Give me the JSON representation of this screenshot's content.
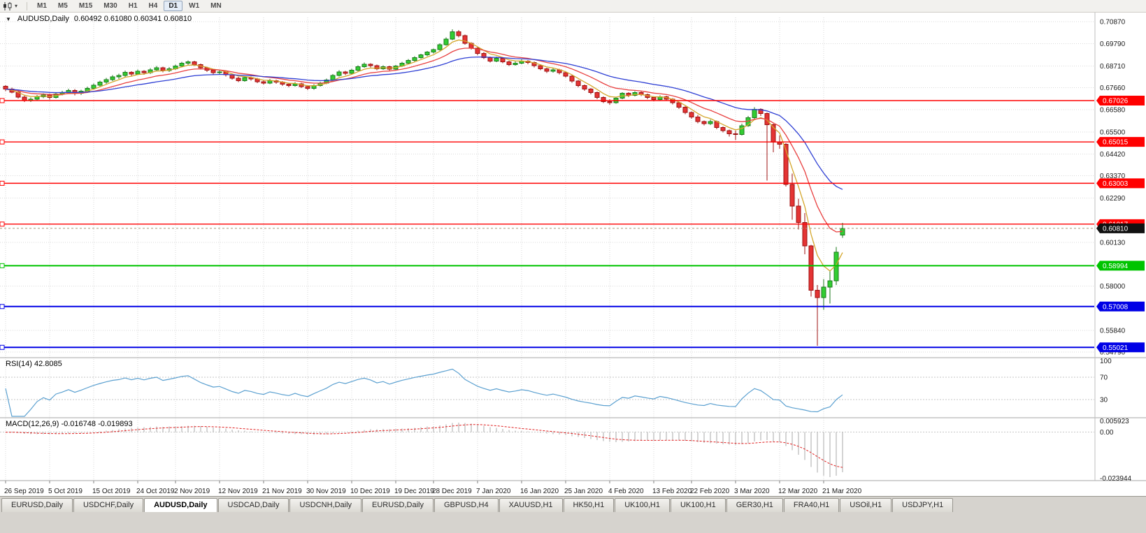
{
  "toolbar": {
    "chart_icon": "candlestick-chart-icon",
    "dropdown_icon": "▾",
    "timeframes": [
      "M1",
      "M5",
      "M15",
      "M30",
      "H1",
      "H4",
      "D1",
      "W1",
      "MN"
    ],
    "active_timeframe": "D1"
  },
  "chart_header": {
    "collapse_icon": "▼",
    "title": "AUDUSD,Daily",
    "ohlc": "0.60492 0.61080 0.60341 0.60810"
  },
  "rsi_header": "RSI(14) 42.8085",
  "macd_header": "MACD(12,26,9) -0.016748 -0.019893",
  "tabbar": {
    "tabs": [
      "EURUSD,Daily",
      "USDCHF,Daily",
      "AUDUSD,Daily",
      "USDCAD,Daily",
      "USDCNH,Daily",
      "EURUSD,Daily",
      "GBPUSD,H4",
      "XAUUSD,H1",
      "HK50,H1",
      "UK100,H1",
      "UK100,H1",
      "GER30,H1",
      "FRA40,H1",
      "USOil,H1",
      "USDJPY,H1"
    ],
    "active_index": 2
  },
  "chart_data": {
    "type": "candlestick",
    "symbol": "AUDUSD",
    "timeframe": "Daily",
    "current_bar": {
      "open": "0.60492",
      "high": "0.61080",
      "low": "0.60341",
      "close": "0.60810"
    },
    "price_axis": {
      "top_price": 0.7107,
      "bottom_price": 0.5452,
      "ticks": [
        "0.70870",
        "0.69790",
        "0.68710",
        "0.67660",
        "0.66580",
        "0.65500",
        "0.64420",
        "0.63370",
        "0.62290",
        "0.60130",
        "0.58000",
        "0.55840",
        "0.54790"
      ]
    },
    "x_labels": [
      "26 Sep 2019",
      "5 Oct 2019",
      "15 Oct 2019",
      "24 Oct 2019",
      "2 Nov 2019",
      "12 Nov 2019",
      "21 Nov 2019",
      "30 Nov 2019",
      "10 Dec 2019",
      "19 Dec 2019",
      "28 Dec 2019",
      "7 Jan 2020",
      "16 Jan 2020",
      "25 Jan 2020",
      "4 Feb 2020",
      "13 Feb 2020",
      "22 Feb 2020",
      "3 Mar 2020",
      "12 Mar 2020",
      "21 Mar 2020"
    ],
    "x_label_indices": [
      0,
      7,
      14,
      21,
      27,
      34,
      41,
      48,
      55,
      62,
      68,
      75,
      82,
      89,
      96,
      103,
      109,
      116,
      123,
      130
    ],
    "hlines": [
      {
        "price": 0.67026,
        "label": "0.67026",
        "color": "#ff0000",
        "width": 1.4
      },
      {
        "price": 0.65015,
        "label": "0.65015",
        "color": "#ff0000",
        "width": 1.4
      },
      {
        "price": 0.63003,
        "label": "0.63003",
        "color": "#ff0000",
        "width": 1.4
      },
      {
        "price": 0.61017,
        "label": "0.61017",
        "color": "#ff0000",
        "width": 1.4
      },
      {
        "price": 0.58994,
        "label": "0.58994",
        "color": "#00c400",
        "width": 2
      },
      {
        "price": 0.57008,
        "label": "0.57008",
        "color": "#0000e6",
        "width": 2
      },
      {
        "price": 0.55021,
        "label": "0.55021",
        "color": "#0000e6",
        "width": 2
      }
    ],
    "current_price": {
      "value": 0.6081,
      "label": "0.60810",
      "badge_color": "#111111",
      "line_color": "#a89878"
    },
    "moving_averages": [
      {
        "name": "ma-fast",
        "period": 5,
        "color": "#d4a62a"
      },
      {
        "name": "ma-medium",
        "period": 12,
        "color": "#e84040"
      },
      {
        "name": "ma-slow",
        "period": 26,
        "color": "#2e3fd4"
      }
    ],
    "rsi": {
      "period": 14,
      "value": "42.8085",
      "levels": [
        "100",
        "70",
        "30"
      ],
      "level_lines": [
        70,
        30
      ],
      "color": "#5ba0d0"
    },
    "macd": {
      "params": "12,26,9",
      "value": "-0.016748",
      "signal": "-0.019893",
      "axis_labels": [
        "0.005923",
        "0.00",
        "-0.023944"
      ],
      "histogram_color": "#a9a9a9",
      "signal_color": "#e02020"
    },
    "colors": {
      "up_fill": "#32cd32",
      "up_border": "#1b7a1b",
      "down_fill": "#e43434",
      "down_border": "#9c1010",
      "grid": "#d9d9d9",
      "separator": "#a6a6a6",
      "axis_text": "#1a1a1a"
    },
    "candles": [
      [
        0.6772,
        0.6778,
        0.6748,
        0.6758
      ],
      [
        0.6758,
        0.6766,
        0.6738,
        0.6744
      ],
      [
        0.6744,
        0.675,
        0.6712,
        0.672
      ],
      [
        0.672,
        0.6726,
        0.6695,
        0.6702
      ],
      [
        0.6702,
        0.6718,
        0.6696,
        0.671
      ],
      [
        0.671,
        0.673,
        0.6704,
        0.6722
      ],
      [
        0.6722,
        0.6738,
        0.6715,
        0.673
      ],
      [
        0.673,
        0.6736,
        0.6708,
        0.6718
      ],
      [
        0.6718,
        0.6742,
        0.6712,
        0.6735
      ],
      [
        0.6735,
        0.675,
        0.6728,
        0.6742
      ],
      [
        0.6742,
        0.676,
        0.6735,
        0.6752
      ],
      [
        0.6752,
        0.6758,
        0.6728,
        0.6738
      ],
      [
        0.6738,
        0.6756,
        0.673,
        0.6748
      ],
      [
        0.6748,
        0.677,
        0.6742,
        0.6762
      ],
      [
        0.6762,
        0.6786,
        0.6756,
        0.6778
      ],
      [
        0.6778,
        0.68,
        0.677,
        0.6792
      ],
      [
        0.6792,
        0.6813,
        0.6785,
        0.6805
      ],
      [
        0.6805,
        0.6826,
        0.6798,
        0.6818
      ],
      [
        0.6818,
        0.6834,
        0.6808,
        0.6825
      ],
      [
        0.6825,
        0.6848,
        0.6818,
        0.684
      ],
      [
        0.684,
        0.6845,
        0.6822,
        0.6832
      ],
      [
        0.6832,
        0.6853,
        0.6826,
        0.6845
      ],
      [
        0.6845,
        0.685,
        0.6828,
        0.6838
      ],
      [
        0.6838,
        0.686,
        0.6832,
        0.6852
      ],
      [
        0.6852,
        0.687,
        0.6846,
        0.6862
      ],
      [
        0.6862,
        0.6867,
        0.684,
        0.6848
      ],
      [
        0.6848,
        0.6866,
        0.6842,
        0.6858
      ],
      [
        0.6858,
        0.6878,
        0.6852,
        0.687
      ],
      [
        0.687,
        0.6892,
        0.6864,
        0.6885
      ],
      [
        0.6885,
        0.6898,
        0.6876,
        0.6892
      ],
      [
        0.6892,
        0.6896,
        0.687,
        0.6878
      ],
      [
        0.6878,
        0.6882,
        0.6854,
        0.6862
      ],
      [
        0.6862,
        0.6868,
        0.6842,
        0.685
      ],
      [
        0.685,
        0.6856,
        0.683,
        0.6838
      ],
      [
        0.6838,
        0.6852,
        0.6832,
        0.6842
      ],
      [
        0.6842,
        0.6846,
        0.682,
        0.6828
      ],
      [
        0.6828,
        0.6832,
        0.6804,
        0.6812
      ],
      [
        0.6812,
        0.6818,
        0.6792,
        0.68
      ],
      [
        0.68,
        0.6822,
        0.6794,
        0.6815
      ],
      [
        0.6815,
        0.682,
        0.6799,
        0.6808
      ],
      [
        0.6808,
        0.6813,
        0.6787,
        0.6795
      ],
      [
        0.6795,
        0.6801,
        0.678,
        0.6788
      ],
      [
        0.6788,
        0.6808,
        0.6782,
        0.68
      ],
      [
        0.68,
        0.6805,
        0.6784,
        0.6792
      ],
      [
        0.6792,
        0.6797,
        0.6774,
        0.6782
      ],
      [
        0.6782,
        0.6788,
        0.6768,
        0.6775
      ],
      [
        0.6775,
        0.6793,
        0.677,
        0.6785
      ],
      [
        0.6785,
        0.679,
        0.6763,
        0.677
      ],
      [
        0.677,
        0.6776,
        0.6754,
        0.6762
      ],
      [
        0.6762,
        0.6782,
        0.6756,
        0.6775
      ],
      [
        0.6775,
        0.6795,
        0.677,
        0.6788
      ],
      [
        0.6788,
        0.6809,
        0.6782,
        0.6802
      ],
      [
        0.6802,
        0.6832,
        0.6796,
        0.6825
      ],
      [
        0.6825,
        0.685,
        0.6819,
        0.6842
      ],
      [
        0.6842,
        0.6847,
        0.6826,
        0.6835
      ],
      [
        0.6835,
        0.6857,
        0.6829,
        0.685
      ],
      [
        0.685,
        0.6875,
        0.6844,
        0.6868
      ],
      [
        0.6868,
        0.6887,
        0.6862,
        0.688
      ],
      [
        0.688,
        0.6885,
        0.6864,
        0.6872
      ],
      [
        0.6872,
        0.6877,
        0.6851,
        0.6858
      ],
      [
        0.6858,
        0.6874,
        0.6852,
        0.6868
      ],
      [
        0.6868,
        0.6873,
        0.6848,
        0.6855
      ],
      [
        0.6855,
        0.6876,
        0.6849,
        0.687
      ],
      [
        0.687,
        0.6891,
        0.6865,
        0.6885
      ],
      [
        0.6885,
        0.6904,
        0.6879,
        0.6898
      ],
      [
        0.6898,
        0.6918,
        0.6892,
        0.6912
      ],
      [
        0.6912,
        0.6931,
        0.6906,
        0.6925
      ],
      [
        0.6925,
        0.6944,
        0.6919,
        0.6938
      ],
      [
        0.6938,
        0.6956,
        0.6932,
        0.695
      ],
      [
        0.695,
        0.6981,
        0.6945,
        0.6975
      ],
      [
        0.6975,
        0.701,
        0.697,
        0.7002
      ],
      [
        0.7002,
        0.7049,
        0.6997,
        0.7038
      ],
      [
        0.7038,
        0.7045,
        0.701,
        0.7018
      ],
      [
        0.7018,
        0.7024,
        0.6974,
        0.6982
      ],
      [
        0.6982,
        0.6987,
        0.695,
        0.6958
      ],
      [
        0.6958,
        0.6963,
        0.6924,
        0.6932
      ],
      [
        0.6932,
        0.6938,
        0.6904,
        0.6912
      ],
      [
        0.6912,
        0.6917,
        0.6887,
        0.6895
      ],
      [
        0.6895,
        0.6916,
        0.6889,
        0.6908
      ],
      [
        0.6908,
        0.6913,
        0.6884,
        0.6892
      ],
      [
        0.6892,
        0.6897,
        0.687,
        0.6878
      ],
      [
        0.6878,
        0.6893,
        0.6872,
        0.6885
      ],
      [
        0.6885,
        0.6903,
        0.6879,
        0.6895
      ],
      [
        0.6895,
        0.69,
        0.688,
        0.6888
      ],
      [
        0.6888,
        0.6893,
        0.6864,
        0.6872
      ],
      [
        0.6872,
        0.6877,
        0.685,
        0.6858
      ],
      [
        0.6858,
        0.6863,
        0.6837,
        0.6845
      ],
      [
        0.6845,
        0.6861,
        0.6839,
        0.6852
      ],
      [
        0.6852,
        0.6857,
        0.683,
        0.6838
      ],
      [
        0.6838,
        0.6843,
        0.6814,
        0.6822
      ],
      [
        0.6822,
        0.6826,
        0.679,
        0.6798
      ],
      [
        0.6798,
        0.6803,
        0.6767,
        0.6775
      ],
      [
        0.6775,
        0.678,
        0.675,
        0.6758
      ],
      [
        0.6758,
        0.6763,
        0.6734,
        0.6742
      ],
      [
        0.6742,
        0.6746,
        0.671,
        0.6718
      ],
      [
        0.6718,
        0.6723,
        0.669,
        0.6698
      ],
      [
        0.6698,
        0.6709,
        0.6683,
        0.6692
      ],
      [
        0.6692,
        0.6721,
        0.6687,
        0.6715
      ],
      [
        0.6715,
        0.6744,
        0.671,
        0.6738
      ],
      [
        0.6738,
        0.6743,
        0.672,
        0.6728
      ],
      [
        0.6728,
        0.6748,
        0.6723,
        0.6742
      ],
      [
        0.6742,
        0.6747,
        0.6724,
        0.6732
      ],
      [
        0.6732,
        0.6737,
        0.671,
        0.6718
      ],
      [
        0.6718,
        0.6723,
        0.67,
        0.6708
      ],
      [
        0.6708,
        0.6728,
        0.6703,
        0.6722
      ],
      [
        0.6722,
        0.6727,
        0.6702,
        0.671
      ],
      [
        0.671,
        0.6715,
        0.6684,
        0.6692
      ],
      [
        0.6692,
        0.6697,
        0.6662,
        0.667
      ],
      [
        0.667,
        0.6675,
        0.6637,
        0.6645
      ],
      [
        0.6645,
        0.665,
        0.6614,
        0.6622
      ],
      [
        0.6622,
        0.6633,
        0.6592,
        0.66
      ],
      [
        0.66,
        0.6606,
        0.6582,
        0.659
      ],
      [
        0.659,
        0.661,
        0.6584,
        0.66
      ],
      [
        0.66,
        0.6605,
        0.6564,
        0.6572
      ],
      [
        0.6572,
        0.6577,
        0.6548,
        0.6556
      ],
      [
        0.6556,
        0.6561,
        0.6528,
        0.6542
      ],
      [
        0.6542,
        0.6556,
        0.651,
        0.6538
      ],
      [
        0.6538,
        0.659,
        0.6533,
        0.658
      ],
      [
        0.658,
        0.6628,
        0.6575,
        0.662
      ],
      [
        0.662,
        0.667,
        0.6615,
        0.666
      ],
      [
        0.666,
        0.6665,
        0.6628,
        0.664
      ],
      [
        0.664,
        0.6645,
        0.6313,
        0.6585
      ],
      [
        0.6585,
        0.659,
        0.6451,
        0.65
      ],
      [
        0.65,
        0.6532,
        0.6468,
        0.649
      ],
      [
        0.649,
        0.6495,
        0.6285,
        0.6295
      ],
      [
        0.6295,
        0.6348,
        0.6123,
        0.619
      ],
      [
        0.619,
        0.6225,
        0.6075,
        0.611
      ],
      [
        0.611,
        0.6155,
        0.5955,
        0.5995
      ],
      [
        0.5995,
        0.6,
        0.575,
        0.578
      ],
      [
        0.578,
        0.5805,
        0.551,
        0.5745
      ],
      [
        0.5745,
        0.5835,
        0.5685,
        0.5795
      ],
      [
        0.5795,
        0.5875,
        0.5715,
        0.5825
      ],
      [
        0.5825,
        0.599,
        0.5805,
        0.5965
      ],
      [
        0.60492,
        0.6108,
        0.60341,
        0.6081
      ]
    ]
  }
}
